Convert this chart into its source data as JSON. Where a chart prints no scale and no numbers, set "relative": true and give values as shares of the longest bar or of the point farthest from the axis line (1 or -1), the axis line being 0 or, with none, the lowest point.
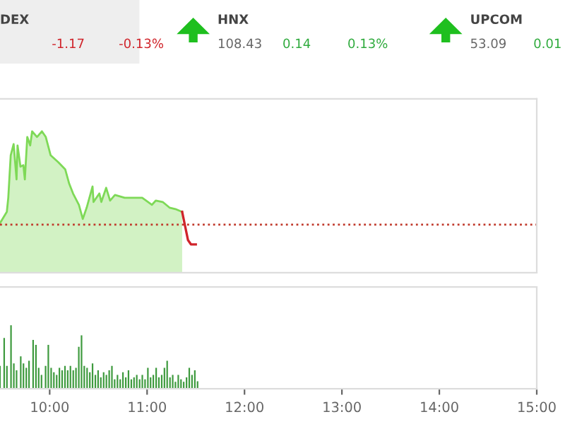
{
  "chart_data": [
    {
      "type": "other",
      "annotations": [
        "DEX",
        "-1.17",
        "-0.13%",
        "HNX",
        "108.43",
        "0.14",
        "0.13%",
        "UPCOM",
        "53.09",
        "0.01"
      ]
    },
    {
      "type": "area",
      "relative": true,
      "xlim": [
        9.49,
        15.0
      ],
      "tick_labels": false,
      "series": [
        {
          "type": "area",
          "color": "#7ed957",
          "x": [
            9.49,
            9.56,
            9.575,
            9.6,
            9.63,
            9.66,
            9.67,
            9.7,
            9.73,
            9.745,
            9.77,
            9.8,
            9.82,
            9.87,
            9.92,
            9.96,
            10.01,
            10.09,
            10.16,
            10.2,
            10.24,
            10.3,
            10.34,
            10.38,
            10.44,
            10.45,
            10.51,
            10.53,
            10.58,
            10.62,
            10.67,
            10.77,
            10.87,
            10.95,
            11.05,
            11.09,
            11.16,
            11.23,
            11.29,
            11.36
          ],
          "values": [
            0.35,
            0.43,
            0.53,
            0.83,
            0.91,
            0.66,
            0.9,
            0.75,
            0.76,
            0.66,
            0.96,
            0.9,
            1.0,
            0.96,
            1.0,
            0.96,
            0.83,
            0.78,
            0.73,
            0.63,
            0.56,
            0.48,
            0.38,
            0.46,
            0.61,
            0.5,
            0.56,
            0.5,
            0.6,
            0.51,
            0.55,
            0.53,
            0.53,
            0.53,
            0.48,
            0.51,
            0.5,
            0.46,
            0.45,
            0.43
          ]
        },
        {
          "type": "line",
          "color": "#d0242b",
          "x": [
            11.36,
            11.39,
            11.42,
            11.45,
            11.5
          ],
          "values": [
            0.43,
            0.33,
            0.23,
            0.2,
            0.2
          ]
        }
      ],
      "ref_lines": [
        {
          "axis": "y",
          "value": 0.34,
          "color": "#c0392b",
          "line_style": "dotted"
        }
      ]
    },
    {
      "type": "bar",
      "relative": true,
      "xlim": [
        9.49,
        15.0
      ],
      "xticks": [
        {
          "value": 10,
          "label": "10:00"
        },
        {
          "value": 11,
          "label": "11:00"
        },
        {
          "value": 12,
          "label": "12:00"
        },
        {
          "value": 13,
          "label": "13:00"
        },
        {
          "value": 14,
          "label": "14:00"
        },
        {
          "value": 15,
          "label": "15:00"
        }
      ],
      "tick_labels": "x",
      "color": "#3e9a3e",
      "x": [
        9.49,
        9.533,
        9.561,
        9.603,
        9.632,
        9.66,
        9.703,
        9.731,
        9.76,
        9.788,
        9.83,
        9.859,
        9.887,
        9.916,
        9.958,
        9.986,
        10.015,
        10.043,
        10.072,
        10.1,
        10.128,
        10.157,
        10.185,
        10.213,
        10.242,
        10.27,
        10.299,
        10.327,
        10.355,
        10.384,
        10.412,
        10.44,
        10.469,
        10.497,
        10.525,
        10.554,
        10.582,
        10.611,
        10.639,
        10.667,
        10.696,
        10.724,
        10.752,
        10.781,
        10.809,
        10.838,
        10.866,
        10.894,
        10.923,
        10.951,
        10.979,
        11.008,
        11.036,
        11.064,
        11.093,
        11.121,
        11.15,
        11.178,
        11.206,
        11.235,
        11.263,
        11.291,
        11.32,
        11.348,
        11.376,
        11.405,
        11.433,
        11.461,
        11.49,
        11.518
      ],
      "values": [
        0.36,
        0.8,
        0.36,
        1.0,
        0.4,
        0.29,
        0.51,
        0.4,
        0.33,
        0.44,
        0.77,
        0.69,
        0.33,
        0.22,
        0.36,
        0.69,
        0.33,
        0.26,
        0.22,
        0.33,
        0.29,
        0.36,
        0.29,
        0.36,
        0.29,
        0.33,
        0.66,
        0.84,
        0.36,
        0.33,
        0.26,
        0.4,
        0.22,
        0.29,
        0.18,
        0.26,
        0.22,
        0.29,
        0.36,
        0.15,
        0.22,
        0.15,
        0.26,
        0.18,
        0.29,
        0.15,
        0.18,
        0.22,
        0.15,
        0.22,
        0.15,
        0.33,
        0.18,
        0.22,
        0.33,
        0.18,
        0.22,
        0.33,
        0.44,
        0.18,
        0.22,
        0.11,
        0.22,
        0.15,
        0.11,
        0.18,
        0.33,
        0.22,
        0.29,
        0.12
      ]
    }
  ]
}
